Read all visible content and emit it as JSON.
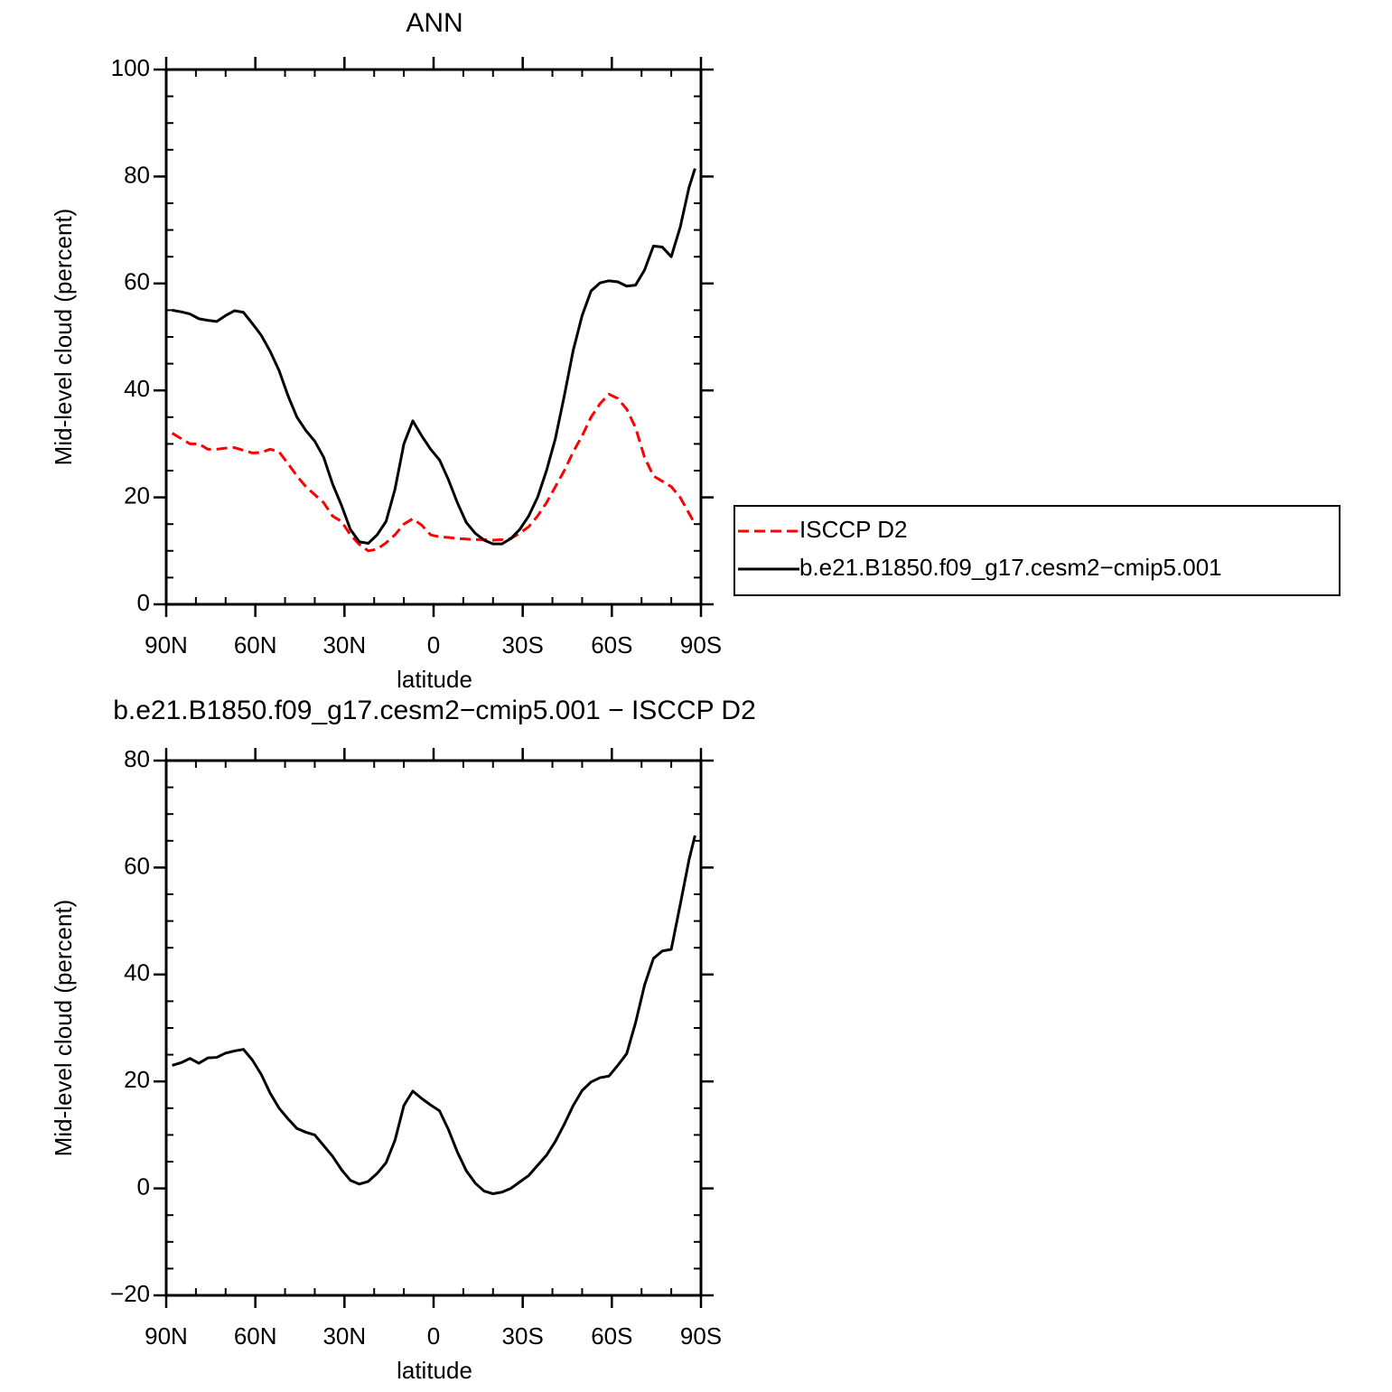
{
  "chart_data": [
    {
      "type": "line",
      "title": "ANN",
      "xlabel": "latitude",
      "ylabel": "Mid-level cloud (percent)",
      "xlim": [
        90,
        -90
      ],
      "ylim": [
        0,
        100
      ],
      "xticks": [
        {
          "value": 90,
          "label": "90N"
        },
        {
          "value": 60,
          "label": "60N"
        },
        {
          "value": 30,
          "label": "30N"
        },
        0,
        {
          "value": -30,
          "label": "30S"
        },
        {
          "value": -60,
          "label": "60S"
        },
        {
          "value": -90,
          "label": "90S"
        }
      ],
      "yticks": [
        0,
        20,
        40,
        60,
        80,
        100
      ],
      "legend": "right",
      "x": [
        88,
        85,
        82,
        79,
        76,
        73,
        70,
        67,
        64,
        61,
        58,
        55,
        52,
        49,
        46,
        43,
        40,
        37,
        34,
        31,
        28,
        25,
        22,
        19,
        16,
        13,
        10,
        7,
        4,
        1,
        -2,
        -5,
        -8,
        -11,
        -14,
        -17,
        -20,
        -23,
        -26,
        -29,
        -32,
        -35,
        -38,
        -41,
        -44,
        -47,
        -50,
        -53,
        -56,
        -59,
        -62,
        -65,
        -68,
        -71,
        -74,
        -77,
        -80,
        -83,
        -86,
        -88
      ],
      "series": [
        {
          "name": "ISCCP D2",
          "color": "#ff0000",
          "dash": "dashed",
          "values": [
            32,
            31,
            30,
            30,
            29,
            29,
            29.2,
            29.3,
            28.8,
            28.3,
            28.4,
            29,
            28.5,
            26.3,
            24,
            22,
            20.5,
            19,
            16.5,
            15.5,
            13,
            11.2,
            10,
            10.3,
            11.5,
            13,
            15,
            16,
            14.8,
            13,
            12.6,
            12.5,
            12.3,
            12.2,
            12.1,
            12.1,
            12,
            12.1,
            12.3,
            13.3,
            14.5,
            16.5,
            19,
            22,
            25,
            28.5,
            31.5,
            35,
            37.5,
            39.3,
            38.5,
            36.5,
            33,
            27.5,
            24,
            23,
            22,
            20,
            17,
            15
          ]
        },
        {
          "name": "b.e21.B1850.f09_g17.cesm2−cmip5.001",
          "color": "#000000",
          "dash": "solid",
          "values": [
            55,
            54.7,
            54.3,
            53.4,
            53.1,
            52.9,
            54,
            54.9,
            54.6,
            52.5,
            50.3,
            47.3,
            43.7,
            39,
            35,
            32.5,
            30.5,
            27.5,
            22.5,
            18.5,
            14,
            11.7,
            11.4,
            13,
            15.5,
            21.5,
            30,
            34.3,
            31.5,
            29,
            27,
            23.3,
            19,
            15.3,
            13.3,
            12,
            11.3,
            11.3,
            12.3,
            14,
            16.5,
            20,
            25,
            31,
            39,
            47.5,
            54,
            58.6,
            60.1,
            60.5,
            60.3,
            59.5,
            59.7,
            62.5,
            67,
            66.8,
            65,
            70.5,
            78,
            81.5
          ]
        }
      ]
    },
    {
      "type": "line",
      "title": "b.e21.B1850.f09_g17.cesm2−cmip5.001 − ISCCP D2",
      "xlabel": "latitude",
      "ylabel": "Mid-level cloud (percent)",
      "xlim": [
        90,
        -90
      ],
      "ylim": [
        -20,
        80
      ],
      "xticks": [
        {
          "value": 90,
          "label": "90N"
        },
        {
          "value": 60,
          "label": "60N"
        },
        {
          "value": 30,
          "label": "30N"
        },
        0,
        {
          "value": -30,
          "label": "30S"
        },
        {
          "value": -60,
          "label": "60S"
        },
        {
          "value": -90,
          "label": "90S"
        }
      ],
      "yticks": [
        {
          "value": -20,
          "label": "−20"
        },
        0,
        20,
        40,
        60,
        80
      ],
      "x": [
        88,
        85,
        82,
        79,
        76,
        73,
        70,
        67,
        64,
        61,
        58,
        55,
        52,
        49,
        46,
        43,
        40,
        37,
        34,
        31,
        28,
        25,
        22,
        19,
        16,
        13,
        10,
        7,
        4,
        1,
        -2,
        -5,
        -8,
        -11,
        -14,
        -17,
        -20,
        -23,
        -26,
        -29,
        -32,
        -35,
        -38,
        -41,
        -44,
        -47,
        -50,
        -53,
        -56,
        -59,
        -62,
        -65,
        -68,
        -71,
        -74,
        -77,
        -80,
        -83,
        -86,
        -88
      ],
      "series": [
        {
          "color": "#000000",
          "dash": "solid",
          "values": [
            23,
            23.5,
            24.3,
            23.4,
            24.4,
            24.5,
            25.3,
            25.7,
            26,
            24,
            21.3,
            17.8,
            15,
            13,
            11.2,
            10.5,
            10,
            8,
            6,
            3.5,
            1.5,
            0.8,
            1.3,
            2.8,
            4.8,
            9,
            15.5,
            18.2,
            16.8,
            15.6,
            14.5,
            11,
            6.8,
            3.3,
            1,
            -0.5,
            -1,
            -0.7,
            0,
            1.2,
            2.4,
            4.3,
            6.2,
            8.8,
            12,
            15.5,
            18.3,
            19.9,
            20.7,
            21,
            23,
            25.2,
            31,
            38,
            43,
            44.4,
            44.7,
            53,
            61.5,
            66
          ]
        }
      ]
    }
  ]
}
